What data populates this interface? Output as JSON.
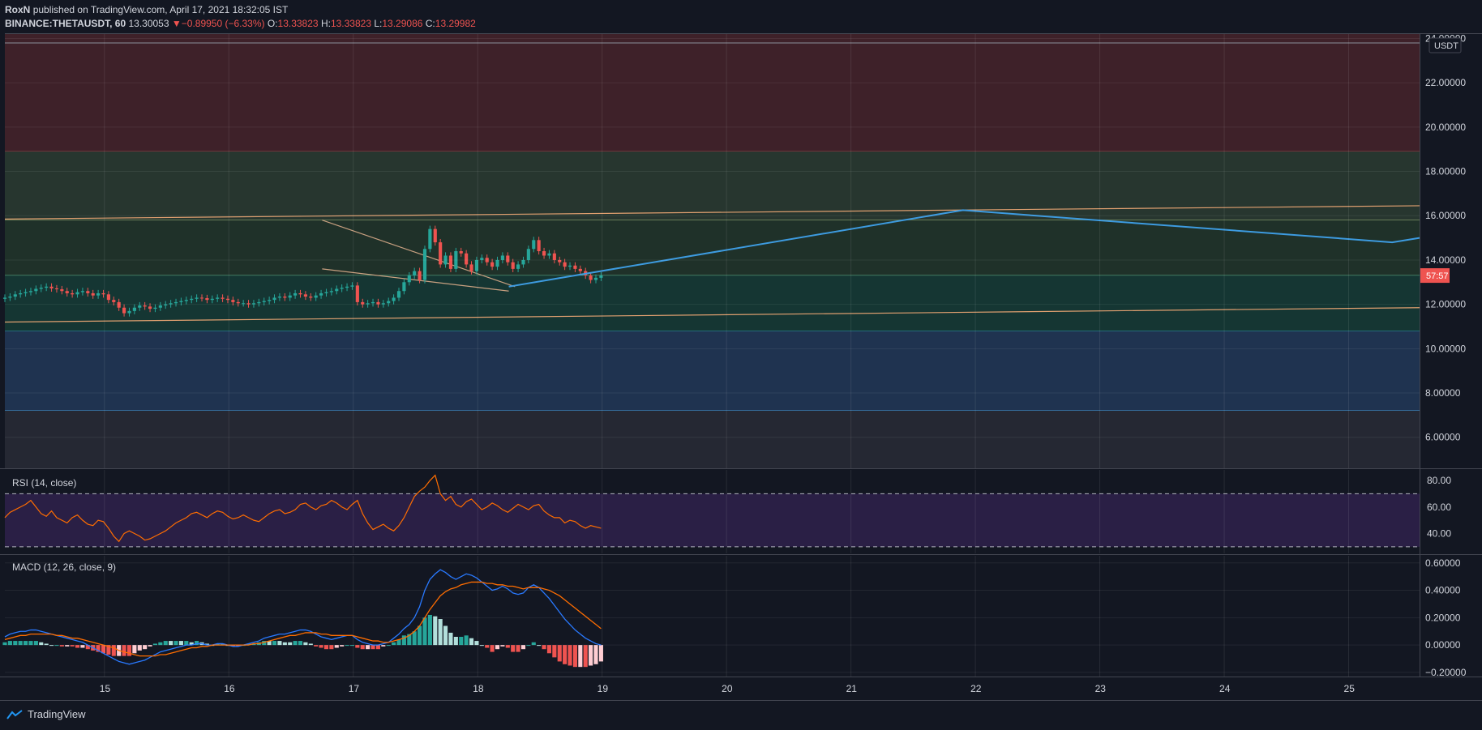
{
  "header": {
    "author": "RoxN",
    "published": "published on TradingView.com, April 17, 2021 18:32:05 IST",
    "symbol": "BINANCE:THETAUSDT, 60",
    "last": "13.30053",
    "change": "−0.89950 (−6.33%)",
    "o_label": "O:",
    "o": "13.33823",
    "h_label": "H:",
    "h": "13.33823",
    "l_label": "L:",
    "l": "13.29086",
    "c_label": "C:",
    "c": "13.29982"
  },
  "price_axis": {
    "currency": "USDT",
    "countdown": "57:57",
    "countdown_value": 13.3,
    "ticks": [
      "24.00000",
      "22.00000",
      "20.00000",
      "18.00000",
      "16.00000",
      "14.00000",
      "12.00000",
      "10.00000",
      "8.00000",
      "6.00000"
    ],
    "tick_values": [
      24,
      22,
      20,
      18,
      16,
      14,
      12,
      10,
      8,
      6
    ],
    "range": [
      4.6,
      24.2
    ]
  },
  "time_axis": {
    "labels": [
      "15",
      "16",
      "17",
      "18",
      "19",
      "20",
      "21",
      "22",
      "23",
      "24",
      "25"
    ],
    "days": [
      15,
      16,
      17,
      18,
      19,
      20,
      21,
      22,
      23,
      24,
      25
    ],
    "range": [
      14.2,
      25.57
    ]
  },
  "zones": [
    {
      "from": 18.9,
      "to": 24.2,
      "color": "#3e2129",
      "line": "#b04a4f"
    },
    {
      "from": 15.8,
      "to": 18.9,
      "color": "#27362f",
      "line": "#b8d08a"
    },
    {
      "from": 13.3,
      "to": 15.8,
      "color": "#1f3129",
      "line": "#6fd0a0"
    },
    {
      "from": 10.8,
      "to": 13.3,
      "color": "#153633",
      "line": "#2ab0b0"
    },
    {
      "from": 7.2,
      "to": 10.8,
      "color": "#1f3350",
      "line": "#4aa0e0"
    },
    {
      "from": 4.6,
      "to": 7.2,
      "color": "#252833",
      "line": ""
    }
  ],
  "trendlines": [
    {
      "x1": 14.2,
      "y1": 15.85,
      "x2": 25.57,
      "y2": 16.45,
      "color": "#e0a070"
    },
    {
      "x1": 14.2,
      "y1": 11.2,
      "x2": 25.57,
      "y2": 11.85,
      "color": "#e0a070"
    },
    {
      "x1": 16.75,
      "y1": 15.8,
      "x2": 18.3,
      "y2": 12.8,
      "color": "#c8a080"
    },
    {
      "x1": 16.75,
      "y1": 13.6,
      "x2": 18.25,
      "y2": 12.6,
      "color": "#c8a080"
    }
  ],
  "projection": {
    "x": [
      18.25,
      21.9,
      25.35,
      25.57
    ],
    "y": [
      12.8,
      16.25,
      14.8,
      15.0
    ],
    "color": "#3d9be0"
  },
  "candles": {
    "start_day": 14.2,
    "step_hours": 1,
    "closes": [
      12.3,
      12.35,
      12.45,
      12.5,
      12.55,
      12.6,
      12.7,
      12.75,
      12.8,
      12.72,
      12.68,
      12.6,
      12.5,
      12.45,
      12.55,
      12.6,
      12.5,
      12.4,
      12.5,
      12.45,
      12.2,
      12.1,
      11.85,
      11.6,
      11.7,
      11.85,
      11.95,
      11.9,
      11.8,
      11.85,
      11.95,
      12.0,
      12.05,
      12.1,
      12.15,
      12.2,
      12.25,
      12.3,
      12.28,
      12.2,
      12.25,
      12.3,
      12.25,
      12.2,
      12.1,
      12.05,
      12.05,
      12.0,
      12.05,
      12.1,
      12.15,
      12.2,
      12.3,
      12.35,
      12.3,
      12.4,
      12.5,
      12.45,
      12.35,
      12.3,
      12.4,
      12.5,
      12.55,
      12.6,
      12.7,
      12.75,
      12.8,
      12.85,
      12.1,
      12.0,
      12.05,
      12.1,
      12.0,
      12.05,
      12.15,
      12.3,
      12.6,
      13.0,
      13.3,
      13.5,
      13.1,
      14.5,
      15.4,
      14.8,
      13.8,
      14.2,
      13.6,
      14.4,
      14.3,
      13.8,
      13.5,
      14.0,
      14.1,
      13.9,
      13.7,
      14.0,
      14.2,
      13.9,
      13.6,
      13.8,
      14.0,
      14.5,
      14.9,
      14.4,
      14.2,
      14.3,
      14.0,
      13.9,
      13.7,
      13.75,
      13.6,
      13.5,
      13.3,
      13.1,
      13.2,
      13.3
    ]
  },
  "rsi": {
    "label": "RSI (14, close)",
    "ticks": [
      "80.00",
      "60.00",
      "40.00"
    ],
    "tick_values": [
      80,
      60,
      40
    ],
    "range": [
      25,
      88
    ],
    "band": [
      30,
      70
    ],
    "values": [
      52,
      56,
      58,
      60,
      62,
      65,
      60,
      55,
      53,
      57,
      52,
      50,
      48,
      52,
      54,
      50,
      47,
      46,
      50,
      49,
      44,
      38,
      34,
      40,
      42,
      40,
      38,
      35,
      36,
      38,
      40,
      42,
      45,
      48,
      50,
      52,
      55,
      56,
      54,
      52,
      55,
      57,
      56,
      53,
      51,
      52,
      54,
      52,
      50,
      49,
      52,
      55,
      57,
      58,
      55,
      56,
      58,
      62,
      63,
      60,
      58,
      61,
      62,
      65,
      63,
      60,
      58,
      62,
      65,
      55,
      48,
      43,
      45,
      47,
      44,
      42,
      46,
      52,
      60,
      68,
      72,
      75,
      80,
      84,
      70,
      65,
      68,
      62,
      60,
      64,
      66,
      62,
      58,
      60,
      63,
      61,
      58,
      56,
      59,
      62,
      60,
      58,
      61,
      62,
      57,
      54,
      52,
      52,
      48,
      50,
      49,
      46,
      44,
      46,
      45,
      44
    ]
  },
  "macd": {
    "label": "MACD (12, 26, close, 9)",
    "ticks": [
      "0.60000",
      "0.40000",
      "0.20000",
      "0.00000",
      "−0.20000"
    ],
    "tick_values": [
      0.6,
      0.4,
      0.2,
      0.0,
      -0.2
    ],
    "range": [
      -0.23,
      0.64
    ],
    "macd": [
      0.06,
      0.08,
      0.09,
      0.1,
      0.1,
      0.11,
      0.11,
      0.1,
      0.09,
      0.08,
      0.07,
      0.06,
      0.05,
      0.04,
      0.03,
      0.02,
      0.0,
      -0.02,
      -0.04,
      -0.06,
      -0.08,
      -0.1,
      -0.12,
      -0.13,
      -0.14,
      -0.13,
      -0.12,
      -0.11,
      -0.09,
      -0.07,
      -0.05,
      -0.04,
      -0.03,
      -0.02,
      -0.01,
      0.0,
      0.0,
      0.01,
      0.01,
      0.0,
      0.0,
      0.01,
      0.01,
      0.0,
      -0.01,
      -0.01,
      0.0,
      0.01,
      0.02,
      0.03,
      0.05,
      0.06,
      0.07,
      0.08,
      0.08,
      0.09,
      0.1,
      0.11,
      0.11,
      0.1,
      0.08,
      0.06,
      0.05,
      0.04,
      0.05,
      0.06,
      0.07,
      0.07,
      0.04,
      0.02,
      0.01,
      0.0,
      0.0,
      0.01,
      0.02,
      0.05,
      0.08,
      0.12,
      0.15,
      0.2,
      0.28,
      0.4,
      0.48,
      0.52,
      0.55,
      0.53,
      0.5,
      0.48,
      0.5,
      0.52,
      0.51,
      0.49,
      0.46,
      0.43,
      0.4,
      0.41,
      0.43,
      0.41,
      0.38,
      0.37,
      0.38,
      0.42,
      0.44,
      0.42,
      0.38,
      0.34,
      0.29,
      0.24,
      0.19,
      0.15,
      0.11,
      0.08,
      0.05,
      0.03,
      0.01,
      0.0
    ],
    "signal": [
      0.04,
      0.05,
      0.06,
      0.07,
      0.07,
      0.08,
      0.08,
      0.08,
      0.08,
      0.08,
      0.07,
      0.07,
      0.06,
      0.05,
      0.05,
      0.04,
      0.03,
      0.02,
      0.01,
      0.0,
      -0.01,
      -0.02,
      -0.04,
      -0.05,
      -0.06,
      -0.07,
      -0.08,
      -0.08,
      -0.08,
      -0.08,
      -0.07,
      -0.07,
      -0.06,
      -0.05,
      -0.04,
      -0.03,
      -0.02,
      -0.02,
      -0.01,
      -0.01,
      0.0,
      0.0,
      0.0,
      0.0,
      0.0,
      0.0,
      0.0,
      0.0,
      0.01,
      0.01,
      0.02,
      0.03,
      0.04,
      0.05,
      0.06,
      0.07,
      0.07,
      0.08,
      0.09,
      0.09,
      0.09,
      0.08,
      0.08,
      0.07,
      0.07,
      0.07,
      0.07,
      0.07,
      0.06,
      0.05,
      0.04,
      0.03,
      0.03,
      0.02,
      0.02,
      0.03,
      0.04,
      0.05,
      0.07,
      0.1,
      0.14,
      0.2,
      0.26,
      0.31,
      0.36,
      0.39,
      0.41,
      0.42,
      0.44,
      0.45,
      0.46,
      0.46,
      0.46,
      0.45,
      0.45,
      0.44,
      0.44,
      0.43,
      0.43,
      0.42,
      0.41,
      0.42,
      0.42,
      0.42,
      0.41,
      0.4,
      0.38,
      0.36,
      0.33,
      0.3,
      0.27,
      0.24,
      0.21,
      0.18,
      0.15,
      0.12
    ]
  },
  "footer": {
    "brand": "TradingView"
  },
  "colors": {
    "up": "#26a69a",
    "down": "#ef5350",
    "macd_line": "#2979ff",
    "signal_line": "#ff6d00",
    "rsi_line": "#ff6d00",
    "rsi_band": "#2a1f45"
  }
}
